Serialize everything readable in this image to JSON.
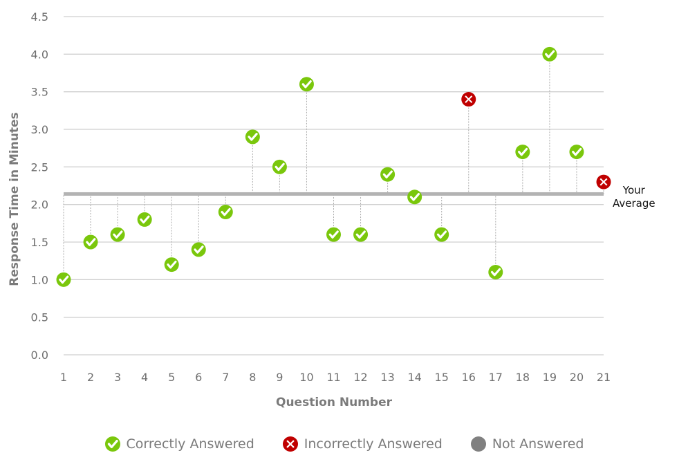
{
  "chart_data": {
    "type": "scatter",
    "xlabel": "Question Number",
    "ylabel": "Response Time in Minutes",
    "ylim": [
      0,
      4.5
    ],
    "yticks": [
      "0.0",
      "0.5",
      "1.0",
      "1.5",
      "2.0",
      "2.5",
      "3.0",
      "3.5",
      "4.0",
      "4.5"
    ],
    "x": [
      1,
      2,
      3,
      4,
      5,
      6,
      7,
      8,
      9,
      10,
      11,
      12,
      13,
      14,
      15,
      16,
      17,
      18,
      19,
      20,
      21
    ],
    "values": [
      1.0,
      1.5,
      1.6,
      1.8,
      1.2,
      1.4,
      1.9,
      2.9,
      2.5,
      3.6,
      1.6,
      1.6,
      2.4,
      2.1,
      1.6,
      3.4,
      1.1,
      2.7,
      4.0,
      2.7,
      2.3
    ],
    "status": [
      "correct",
      "correct",
      "correct",
      "correct",
      "correct",
      "correct",
      "correct",
      "correct",
      "correct",
      "correct",
      "correct",
      "correct",
      "correct",
      "correct",
      "correct",
      "incorrect",
      "correct",
      "correct",
      "correct",
      "correct",
      "incorrect"
    ],
    "average": 2.14,
    "average_label": [
      "Your",
      "Average"
    ],
    "grid": true,
    "legend_placement": "bottom",
    "legend": [
      {
        "key": "correct",
        "label": "Correctly Answered",
        "color": "#7ac70c"
      },
      {
        "key": "incorrect",
        "label": "Incorrectly Answered",
        "color": "#c00000"
      },
      {
        "key": "none",
        "label": "Not Answered",
        "color": "#808080"
      }
    ]
  }
}
